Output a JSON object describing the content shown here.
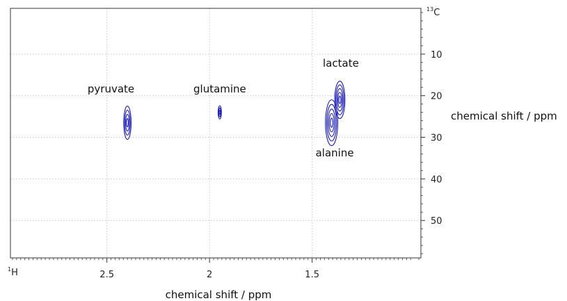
{
  "chart_data": {
    "type": "contour",
    "xlabel": "chemical shift / ppm",
    "ylabel": "chemical shift / ppm",
    "x_nucleus": {
      "mass": "1",
      "symbol": "H"
    },
    "y_nucleus": {
      "mass": "13",
      "symbol": "C"
    },
    "xlim": [
      2.97,
      0.97
    ],
    "ylim": [
      -1,
      59
    ],
    "x_ticks": [
      2.5,
      2.0,
      1.5
    ],
    "x_tick_labels": [
      "2.5",
      "2",
      "1.5"
    ],
    "y_ticks": [
      10,
      20,
      30,
      40,
      50
    ],
    "y_tick_labels": [
      "10",
      "20",
      "30",
      "40",
      "50"
    ],
    "grid": true,
    "contour_color": "#1a1ab8",
    "peaks": [
      {
        "name": "pyruvate",
        "label": "pyruvate",
        "x": 2.4,
        "y": 26.5,
        "rx": 0.018,
        "ry": 4.0,
        "levels": 4
      },
      {
        "name": "glutamine",
        "label": "glutamine",
        "x": 1.95,
        "y": 24.0,
        "rx": 0.008,
        "ry": 1.6,
        "levels": 3
      },
      {
        "name": "lactate",
        "label": "lactate",
        "x": 1.365,
        "y": 21.0,
        "rx": 0.025,
        "ry": 4.5,
        "levels": 5
      },
      {
        "name": "alanine",
        "label": "alanine",
        "x": 1.405,
        "y": 26.5,
        "rx": 0.03,
        "ry": 5.5,
        "levels": 5
      }
    ],
    "label_positions": {
      "pyruvate": {
        "x": 2.48,
        "y": 19.2
      },
      "glutamine": {
        "x": 1.95,
        "y": 19.2
      },
      "lactate": {
        "x": 1.36,
        "y": 13.0
      },
      "alanine": {
        "x": 1.39,
        "y": 34.6
      }
    }
  }
}
